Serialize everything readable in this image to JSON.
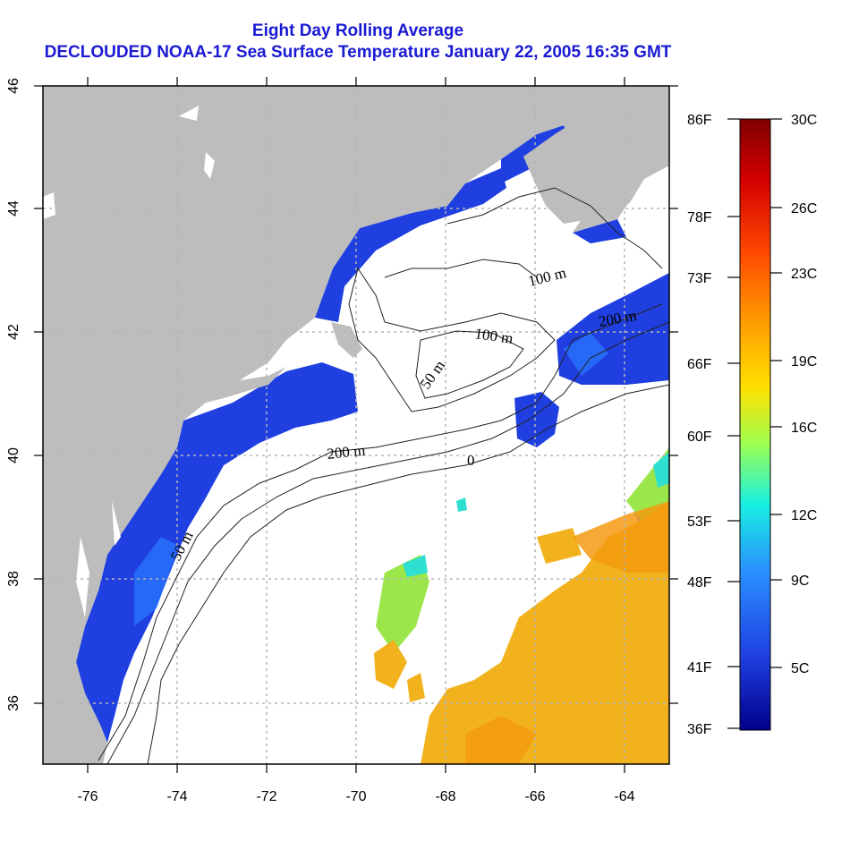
{
  "title_line1": "Eight Day Rolling Average",
  "title_line2": "DECLOUDED NOAA-17 Sea Surface Temperature January 22, 2005 16:35 GMT",
  "map": {
    "lon_range": [
      -77,
      -63
    ],
    "lat_range": [
      35,
      46
    ],
    "x_ticks": [
      "-76",
      "-74",
      "-72",
      "-70",
      "-68",
      "-66",
      "-64"
    ],
    "y_ticks": [
      "36",
      "38",
      "40",
      "42",
      "44",
      "46"
    ],
    "isobath_labels": [
      "100 m",
      "200 m",
      "100 m",
      "50 m",
      "200 m",
      "50 m",
      "0"
    ],
    "colors": {
      "land": "#bdbdbd",
      "cold_water": "#1f3fe0",
      "warm_water": "#f2b21e",
      "grid": "#b5b5b5"
    }
  },
  "colorbar": {
    "fahrenheit_labels": [
      "86F",
      "78F",
      "73F",
      "66F",
      "60F",
      "53F",
      "48F",
      "41F",
      "36F"
    ],
    "celsius_labels": [
      "30C",
      "26C",
      "23C",
      "19C",
      "16C",
      "12C",
      "9C",
      "5C"
    ],
    "gradient": [
      "#800000",
      "#d40000",
      "#ff4a00",
      "#ff9b00",
      "#ffe000",
      "#a0ff50",
      "#18f0e0",
      "#2a90ff",
      "#1f3fe0",
      "#00008a"
    ]
  }
}
